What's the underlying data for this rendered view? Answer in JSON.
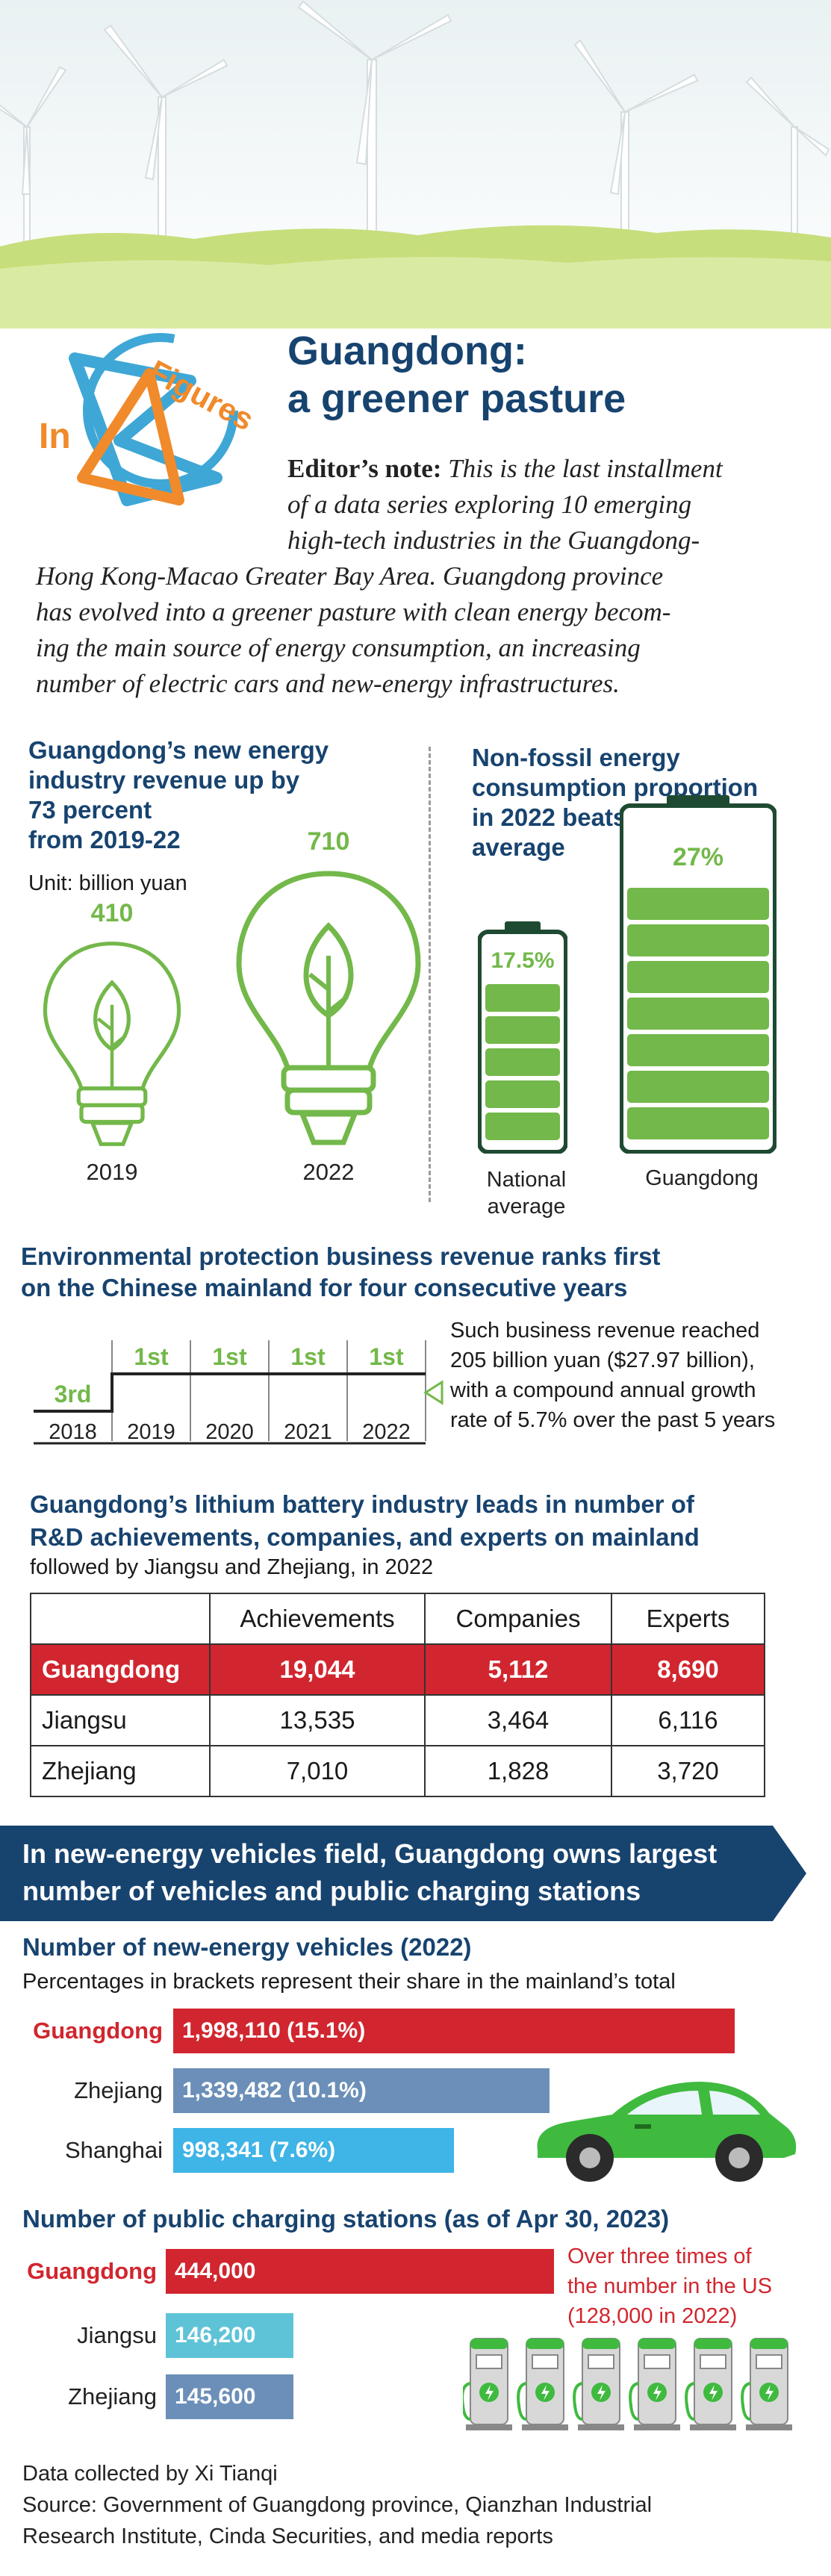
{
  "header": {
    "badge_in": "In",
    "badge_figures": "Figures",
    "title_line1": "Guangdong:",
    "title_line2": "a greener pasture"
  },
  "editor_note": {
    "label": "Editor’s note:",
    "line1": "This is the last installment",
    "line2": "of a data series exploring 10 emerging",
    "line3": "high-tech industries in the Guangdong-",
    "line4": "Hong Kong-Macao Greater Bay Area. Guangdong province",
    "line5": "has evolved into a greener pasture with clean energy becom-",
    "line6": "ing the main source of energy consumption, an increasing",
    "line7": "number of electric cars and new-energy infrastructures."
  },
  "revenue": {
    "title_line1": "Guangdong’s new energy",
    "title_line2": "industry revenue up by",
    "title_line3": "73 percent",
    "title_line4": "from 2019-22",
    "unit": "Unit: billion yuan",
    "chart_data": {
      "type": "bar",
      "categories": [
        "2019",
        "2022"
      ],
      "values": [
        410,
        710
      ]
    }
  },
  "nonfossil": {
    "title_line1": "Non-fossil energy",
    "title_line2": "consumption proportion",
    "title_line3": "in 2022 beats national",
    "title_line4": "average",
    "chart_data": {
      "type": "bar",
      "categories": [
        "National average",
        "Guangdong"
      ],
      "values": [
        17.5,
        27
      ],
      "value_labels": [
        "17.5%",
        "27%"
      ]
    },
    "label_national_1": "National",
    "label_national_2": "average",
    "label_guangdong": "Guangdong"
  },
  "env": {
    "title_line1": "Environmental protection business revenue ranks first",
    "title_line2": "on the Chinese mainland for four consecutive years",
    "chart_data": {
      "type": "line",
      "categories": [
        "2018",
        "2019",
        "2020",
        "2021",
        "2022"
      ],
      "ranks": [
        "3rd",
        "1st",
        "1st",
        "1st",
        "1st"
      ]
    },
    "note_line1": "Such business revenue reached",
    "note_line2": "205 billion yuan ($27.97 billion),",
    "note_line3": "with a compound annual growth",
    "note_line4": "rate of 5.7% over the past 5 years"
  },
  "lithium": {
    "title_line1": "Guangdong’s lithium battery industry leads in number of",
    "title_line2": "R&D achievements, companies, and experts on mainland",
    "subtitle": "followed by Jiangsu and Zhejiang, in 2022",
    "chart_data": {
      "type": "table",
      "columns": [
        "",
        "Achievements",
        "Companies",
        "Experts"
      ],
      "rows": [
        [
          "Guangdong",
          "19,044",
          "5,112",
          "8,690"
        ],
        [
          "Jiangsu",
          "13,535",
          "3,464",
          "6,116"
        ],
        [
          "Zhejiang",
          "7,010",
          "1,828",
          "3,720"
        ]
      ]
    }
  },
  "nev_banner": {
    "line1": "In new-energy vehicles field, Guangdong owns largest",
    "line2": "number of vehicles and public charging stations"
  },
  "vehicles": {
    "title": "Number of new-energy vehicles (2022)",
    "subtitle": "Percentages in brackets represent their share in the mainland’s total",
    "chart_data": {
      "type": "bar",
      "categories": [
        "Guangdong",
        "Zhejiang",
        "Shanghai"
      ],
      "values": [
        1998110,
        1339482,
        998341
      ],
      "value_labels": [
        "1,998,110 (15.1%)",
        "1,339,482 (10.1%)",
        "998,341 (7.6%)"
      ],
      "shares_percent": [
        15.1,
        10.1,
        7.6
      ]
    },
    "colors": {
      "guangdong": "#d1262f",
      "zhejiang": "#6b8fb8",
      "shanghai": "#3fb4e6"
    }
  },
  "stations": {
    "title": "Number of public charging stations (as of Apr 30, 2023)",
    "chart_data": {
      "type": "bar",
      "categories": [
        "Guangdong",
        "Jiangsu",
        "Zhejiang"
      ],
      "values": [
        444000,
        146200,
        145600
      ],
      "value_labels": [
        "444,000",
        "146,200",
        "145,600"
      ]
    },
    "note_line1": "Over three times of",
    "note_line2": "the number in the US",
    "note_line3": "(128,000 in 2022)",
    "colors": {
      "guangdong": "#d1262f",
      "jiangsu": "#5fc3d8",
      "zhejiang": "#6b8fb8"
    }
  },
  "footer": {
    "collected": "Data collected by Xi Tianqi",
    "source_line1": "Source: Government of Guangdong province, Qianzhan Industrial",
    "source_line2": "Research Institute, Cinda Securities, and media reports"
  },
  "palette": {
    "navy": "#17436f",
    "green": "#73b84a",
    "red": "#d1262f",
    "battery_dark": "#1f4a32"
  }
}
